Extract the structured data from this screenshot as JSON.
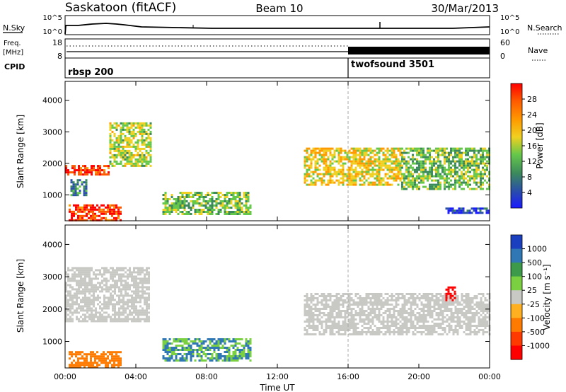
{
  "header": {
    "station": "Saskatoon (fitACF)",
    "beam": "Beam 10",
    "date": "30/Mar/2013"
  },
  "noise_panel": {
    "left_label": "N.Sky",
    "right_label": "N.Search",
    "left_ticks": [
      "10^5",
      "10^0"
    ],
    "right_ticks": [
      "10^5",
      "10^0"
    ]
  },
  "freq_panel": {
    "left_label_line1": "Freq.",
    "left_label_line2": "[MHz]",
    "right_label": "Nave",
    "left_ticks": [
      "18",
      "8"
    ],
    "right_ticks": [
      "60",
      "0"
    ]
  },
  "cpid_panel": {
    "label": "CPID",
    "programs": [
      {
        "name": "rbsp 200",
        "start_hour": 0,
        "end_hour": 16
      },
      {
        "name": "twofsound 3501",
        "start_hour": 16,
        "end_hour": 24
      }
    ]
  },
  "power_panel": {
    "ylabel": "Slant Range [km]",
    "yticks": [
      "1000",
      "2000",
      "3000",
      "4000"
    ],
    "colorbar_label": "Power [dB]",
    "colorbar_ticks": [
      "4",
      "8",
      "12",
      "16",
      "20",
      "24",
      "28"
    ],
    "colorbar_colors": [
      "#1a1aff",
      "#2a4fa8",
      "#3c8a5c",
      "#66c84a",
      "#f0d020",
      "#ff9a00",
      "#ff5a00",
      "#ff0000"
    ]
  },
  "velocity_panel": {
    "ylabel": "Slant Range [km]",
    "yticks": [
      "1000",
      "2000",
      "3000",
      "4000"
    ],
    "colorbar_label": "Velocity [m s⁻¹]",
    "colorbar_ticks": [
      "1000",
      "500",
      "100",
      "25",
      "-25",
      "-100",
      "-500",
      "-1000"
    ],
    "colorbar_colors": [
      "#1a3fbf",
      "#2f78b5",
      "#3c9a4a",
      "#7ad040",
      "#c8c8c4",
      "#ffb020",
      "#ff7a00",
      "#ff3a00",
      "#ff0000"
    ]
  },
  "xaxis": {
    "label": "Time UT",
    "ticks": [
      "00:00",
      "04:00",
      "08:00",
      "12:00",
      "16:00",
      "20:00",
      "00:00"
    ]
  },
  "chart_data": {
    "type": "heatmap",
    "title": "Saskatoon (fitACF)",
    "subtitle": "Beam 10",
    "date": "30/Mar/2013",
    "xlabel": "Time UT",
    "ylabel": "Slant Range [km]",
    "xlim": [
      0,
      24
    ],
    "ylim": [
      180,
      4600
    ],
    "x_ticks": [
      "00:00",
      "04:00",
      "08:00",
      "12:00",
      "16:00",
      "20:00",
      "00:00"
    ],
    "y_ticks": [
      1000,
      2000,
      3000,
      4000
    ],
    "mode_change_hour": 16,
    "panels": [
      {
        "name": "Power [dB]",
        "value_range": [
          4,
          28
        ],
        "echo_regions": [
          {
            "t0": 0.0,
            "t1": 2.5,
            "r0": 1650,
            "r1": 1950,
            "value": 26
          },
          {
            "t0": 2.5,
            "t1": 4.8,
            "r0": 1900,
            "r1": 3300,
            "value": 16
          },
          {
            "t0": 0.2,
            "t1": 3.2,
            "r0": 200,
            "r1": 700,
            "value": 26
          },
          {
            "t0": 0.3,
            "t1": 1.2,
            "r0": 1000,
            "r1": 1500,
            "value": 10
          },
          {
            "t0": 5.5,
            "t1": 10.5,
            "r0": 400,
            "r1": 1100,
            "value": 14
          },
          {
            "t0": 13.5,
            "t1": 19.0,
            "r0": 1300,
            "r1": 2500,
            "value": 18
          },
          {
            "t0": 19.0,
            "t1": 24.0,
            "r0": 1200,
            "r1": 2500,
            "value": 14
          },
          {
            "t0": 21.5,
            "t1": 24.0,
            "r0": 400,
            "r1": 600,
            "value": 6
          }
        ]
      },
      {
        "name": "Velocity [m s⁻¹]",
        "value_range": [
          -1000,
          1000
        ],
        "echo_regions": [
          {
            "t0": 0.0,
            "t1": 4.8,
            "r0": 1650,
            "r1": 3300,
            "value": 0
          },
          {
            "t0": 0.2,
            "t1": 3.2,
            "r0": 200,
            "r1": 700,
            "value": -200
          },
          {
            "t0": 5.5,
            "t1": 10.5,
            "r0": 400,
            "r1": 1100,
            "value": 100
          },
          {
            "t0": 13.5,
            "t1": 24.0,
            "r0": 1200,
            "r1": 2500,
            "value": 0
          },
          {
            "t0": 21.5,
            "t1": 22.0,
            "r0": 2300,
            "r1": 2700,
            "value": -800
          }
        ]
      }
    ]
  }
}
